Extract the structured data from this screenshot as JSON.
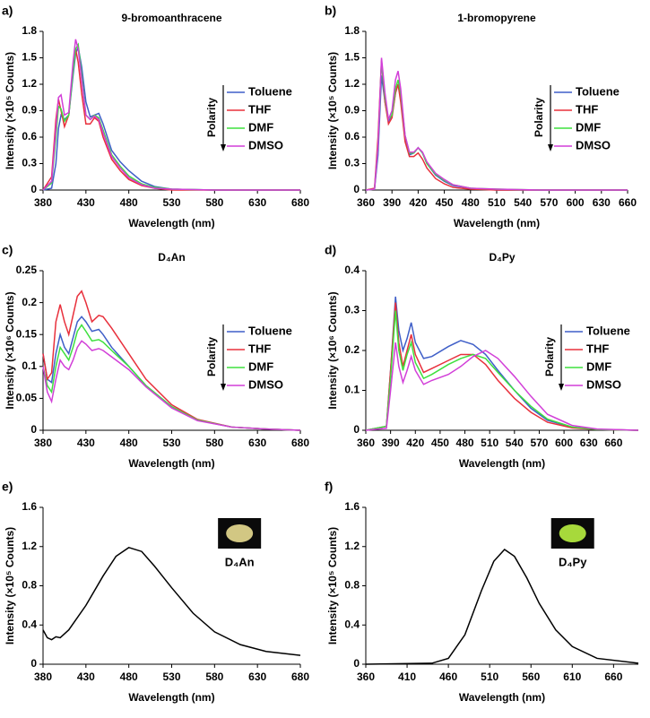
{
  "chart_data": [
    {
      "type": "line",
      "panel_label": "a)",
      "title": "9-bromoanthracene",
      "x_label": "Wavelength (nm)",
      "y_label": "Intensity (×10⁵ Counts)",
      "xlim": [
        380,
        680
      ],
      "xticks": [
        380,
        430,
        480,
        530,
        580,
        630,
        680
      ],
      "ylim": [
        0,
        1.8
      ],
      "yticks": [
        0,
        0.3,
        0.6,
        0.9,
        1.2,
        1.5,
        1.8
      ],
      "legend": "right",
      "legend_title": "Polarity",
      "x": [
        380,
        390,
        395,
        398,
        401,
        405,
        410,
        415,
        418,
        421,
        425,
        430,
        435,
        440,
        445,
        450,
        460,
        470,
        480,
        495,
        510,
        530,
        580,
        680
      ],
      "series": [
        {
          "name": "Toluene",
          "color": "#3f5fc8",
          "values": [
            0,
            0.02,
            0.3,
            0.7,
            0.85,
            0.8,
            0.85,
            1.3,
            1.55,
            1.62,
            1.4,
            1.0,
            0.83,
            0.85,
            0.87,
            0.75,
            0.45,
            0.32,
            0.22,
            0.1,
            0.04,
            0.01,
            0,
            0
          ]
        },
        {
          "name": "THF",
          "color": "#e8303c",
          "values": [
            0,
            0.15,
            0.8,
            1.03,
            0.9,
            0.72,
            0.85,
            1.4,
            1.6,
            1.45,
            1.1,
            0.75,
            0.75,
            0.82,
            0.78,
            0.6,
            0.35,
            0.22,
            0.12,
            0.05,
            0.02,
            0,
            0,
            0
          ]
        },
        {
          "name": "DMF",
          "color": "#3ee03e",
          "values": [
            0,
            0.08,
            0.6,
            0.95,
            0.92,
            0.78,
            0.85,
            1.35,
            1.6,
            1.65,
            1.3,
            0.85,
            0.8,
            0.85,
            0.82,
            0.68,
            0.4,
            0.27,
            0.16,
            0.07,
            0.03,
            0.01,
            0,
            0
          ]
        },
        {
          "name": "DMSO",
          "color": "#d23fd8",
          "values": [
            0,
            0.1,
            0.7,
            1.05,
            1.08,
            0.85,
            0.88,
            1.45,
            1.71,
            1.6,
            1.25,
            0.85,
            0.8,
            0.84,
            0.8,
            0.65,
            0.38,
            0.25,
            0.14,
            0.06,
            0.02,
            0.01,
            0,
            0
          ]
        }
      ]
    },
    {
      "type": "line",
      "panel_label": "b)",
      "title": "1-bromopyrene",
      "x_label": "Wavelength (nm)",
      "y_label": "Intensity (×10⁵ Counts)",
      "xlim": [
        360,
        660
      ],
      "xticks": [
        360,
        390,
        420,
        450,
        480,
        510,
        540,
        570,
        600,
        630,
        660
      ],
      "ylim": [
        0,
        1.8
      ],
      "yticks": [
        0,
        0.3,
        0.6,
        0.9,
        1.2,
        1.5,
        1.8
      ],
      "legend": "right",
      "legend_title": "Polarity",
      "x": [
        360,
        370,
        374,
        378,
        382,
        386,
        390,
        394,
        397,
        400,
        405,
        410,
        415,
        420,
        425,
        430,
        440,
        450,
        460,
        480,
        510,
        560,
        660
      ],
      "series": [
        {
          "name": "Toluene",
          "color": "#3f5fc8",
          "values": [
            0,
            0.01,
            0.4,
            1.3,
            1.0,
            0.78,
            0.85,
            1.1,
            1.2,
            1.05,
            0.6,
            0.4,
            0.42,
            0.48,
            0.42,
            0.3,
            0.17,
            0.1,
            0.05,
            0.02,
            0,
            0,
            0
          ]
        },
        {
          "name": "THF",
          "color": "#e8303c",
          "values": [
            0,
            0.02,
            0.6,
            1.47,
            1.0,
            0.75,
            0.82,
            1.1,
            1.2,
            1.0,
            0.55,
            0.38,
            0.38,
            0.42,
            0.35,
            0.25,
            0.13,
            0.07,
            0.03,
            0.01,
            0,
            0,
            0
          ]
        },
        {
          "name": "DMF",
          "color": "#3ee03e",
          "values": [
            0,
            0.01,
            0.5,
            1.45,
            1.05,
            0.8,
            0.85,
            1.15,
            1.25,
            1.1,
            0.62,
            0.42,
            0.42,
            0.48,
            0.42,
            0.3,
            0.18,
            0.11,
            0.06,
            0.02,
            0.01,
            0,
            0
          ]
        },
        {
          "name": "DMSO",
          "color": "#d23fd8",
          "values": [
            0,
            0.01,
            0.5,
            1.5,
            1.1,
            0.8,
            0.9,
            1.25,
            1.35,
            1.15,
            0.62,
            0.43,
            0.43,
            0.48,
            0.43,
            0.32,
            0.19,
            0.12,
            0.06,
            0.02,
            0.01,
            0,
            0
          ]
        }
      ]
    },
    {
      "type": "line",
      "panel_label": "c)",
      "title": "D₄An",
      "x_label": "Wavelength (nm)",
      "y_label": "Intensity (×10⁶ Counts)",
      "xlim": [
        380,
        680
      ],
      "xticks": [
        380,
        430,
        480,
        530,
        580,
        630,
        680
      ],
      "ylim": [
        0,
        0.25
      ],
      "yticks": [
        0,
        0.05,
        0.1,
        0.15,
        0.2,
        0.25
      ],
      "legend": "right",
      "legend_title": "Polarity",
      "x": [
        380,
        385,
        390,
        395,
        400,
        405,
        410,
        415,
        420,
        425,
        430,
        437,
        445,
        450,
        460,
        480,
        500,
        530,
        560,
        600,
        640,
        680
      ],
      "series": [
        {
          "name": "Toluene",
          "color": "#3f5fc8",
          "values": [
            0.12,
            0.08,
            0.075,
            0.12,
            0.15,
            0.13,
            0.12,
            0.145,
            0.17,
            0.178,
            0.17,
            0.155,
            0.158,
            0.15,
            0.13,
            0.1,
            0.07,
            0.037,
            0.016,
            0.005,
            0.002,
            0
          ]
        },
        {
          "name": "THF",
          "color": "#e8303c",
          "values": [
            0.12,
            0.08,
            0.09,
            0.17,
            0.197,
            0.17,
            0.15,
            0.18,
            0.21,
            0.218,
            0.2,
            0.17,
            0.18,
            0.178,
            0.16,
            0.12,
            0.08,
            0.04,
            0.017,
            0.005,
            0.002,
            0
          ]
        },
        {
          "name": "DMF",
          "color": "#3ee03e",
          "values": [
            0.1,
            0.07,
            0.06,
            0.1,
            0.13,
            0.12,
            0.11,
            0.13,
            0.155,
            0.165,
            0.155,
            0.14,
            0.142,
            0.138,
            0.125,
            0.1,
            0.07,
            0.037,
            0.016,
            0.005,
            0.002,
            0
          ]
        },
        {
          "name": "DMSO",
          "color": "#d23fd8",
          "values": [
            0.1,
            0.06,
            0.045,
            0.08,
            0.11,
            0.1,
            0.095,
            0.11,
            0.13,
            0.14,
            0.135,
            0.125,
            0.128,
            0.125,
            0.115,
            0.095,
            0.068,
            0.035,
            0.015,
            0.005,
            0.002,
            0
          ]
        }
      ]
    },
    {
      "type": "line",
      "panel_label": "d)",
      "title": "D₄Py",
      "x_label": "Wavelength (nm)",
      "y_label": "Intensity (×10⁶ Counts)",
      "xlim": [
        360,
        690
      ],
      "xticks": [
        360,
        390,
        420,
        450,
        480,
        510,
        540,
        570,
        600,
        630,
        660
      ],
      "ylim": [
        0,
        0.4
      ],
      "yticks": [
        0,
        0.1,
        0.2,
        0.3,
        0.4
      ],
      "legend": "right",
      "legend_title": "Polarity",
      "x": [
        360,
        385,
        390,
        396,
        400,
        405,
        410,
        415,
        420,
        430,
        440,
        460,
        475,
        490,
        505,
        520,
        540,
        560,
        580,
        610,
        640,
        690
      ],
      "series": [
        {
          "name": "Toluene",
          "color": "#3f5fc8",
          "values": [
            0,
            0.01,
            0.15,
            0.335,
            0.25,
            0.2,
            0.23,
            0.27,
            0.22,
            0.18,
            0.185,
            0.21,
            0.225,
            0.215,
            0.19,
            0.15,
            0.1,
            0.055,
            0.025,
            0.008,
            0.002,
            0
          ]
        },
        {
          "name": "THF",
          "color": "#e8303c",
          "values": [
            0,
            0.01,
            0.15,
            0.32,
            0.22,
            0.16,
            0.2,
            0.24,
            0.19,
            0.145,
            0.155,
            0.175,
            0.19,
            0.19,
            0.165,
            0.125,
            0.08,
            0.045,
            0.02,
            0.006,
            0.002,
            0
          ]
        },
        {
          "name": "DMF",
          "color": "#3ee03e",
          "values": [
            0,
            0.01,
            0.13,
            0.3,
            0.2,
            0.15,
            0.19,
            0.22,
            0.17,
            0.13,
            0.14,
            0.165,
            0.18,
            0.19,
            0.18,
            0.145,
            0.1,
            0.06,
            0.028,
            0.008,
            0.002,
            0
          ]
        },
        {
          "name": "DMSO",
          "color": "#d23fd8",
          "values": [
            0,
            0.005,
            0.1,
            0.22,
            0.16,
            0.12,
            0.15,
            0.185,
            0.15,
            0.115,
            0.125,
            0.14,
            0.16,
            0.185,
            0.2,
            0.18,
            0.135,
            0.085,
            0.04,
            0.012,
            0.003,
            0
          ]
        }
      ]
    },
    {
      "type": "line",
      "panel_label": "e)",
      "x_label": "Wavelength (nm)",
      "y_label": "Intensity (×10⁵ Counts)",
      "xlim": [
        380,
        680
      ],
      "xticks": [
        380,
        430,
        480,
        530,
        580,
        630,
        680
      ],
      "ylim": [
        0,
        1.6
      ],
      "yticks": [
        0,
        0.4,
        0.8,
        1.2,
        1.6
      ],
      "inset_label": "D₄An",
      "inset_color": "#e8dc90",
      "x": [
        380,
        385,
        390,
        395,
        400,
        410,
        430,
        450,
        465,
        480,
        495,
        510,
        530,
        555,
        580,
        610,
        640,
        680
      ],
      "series": [
        {
          "color": "#000000",
          "values": [
            0.35,
            0.27,
            0.25,
            0.28,
            0.27,
            0.35,
            0.6,
            0.9,
            1.1,
            1.19,
            1.15,
            1.0,
            0.78,
            0.52,
            0.33,
            0.2,
            0.13,
            0.09
          ]
        }
      ]
    },
    {
      "type": "line",
      "panel_label": "f)",
      "x_label": "Wavelength (nm)",
      "y_label": "Intensity (×10⁵ Counts)",
      "xlim": [
        360,
        690
      ],
      "xticks": [
        360,
        410,
        460,
        510,
        560,
        610,
        660
      ],
      "ylim": [
        0,
        1.6
      ],
      "yticks": [
        0,
        0.4,
        0.8,
        1.2,
        1.6
      ],
      "inset_label": "D₄Py",
      "inset_color": "#b8f040",
      "x": [
        360,
        440,
        460,
        480,
        500,
        515,
        528,
        540,
        555,
        570,
        590,
        610,
        640,
        690
      ],
      "series": [
        {
          "color": "#000000",
          "values": [
            0,
            0.01,
            0.06,
            0.3,
            0.75,
            1.05,
            1.17,
            1.1,
            0.88,
            0.62,
            0.35,
            0.18,
            0.06,
            0.01
          ]
        }
      ]
    }
  ]
}
